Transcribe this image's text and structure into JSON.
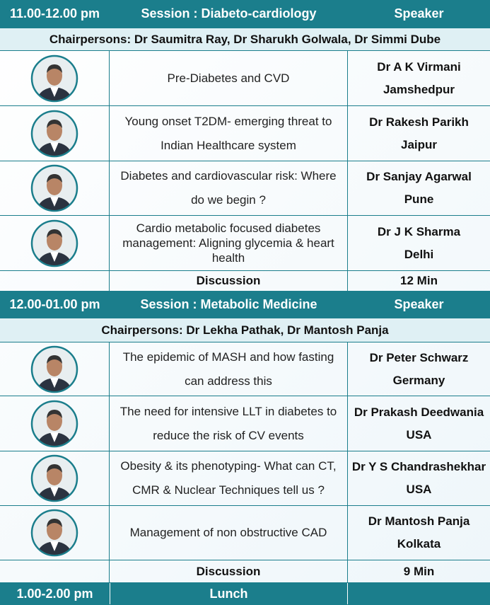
{
  "sessions": [
    {
      "time": "11.00-12.00 pm",
      "title": "Session : Diabeto-cardiology",
      "speaker_label": "Speaker",
      "chairpersons": "Chairpersons: Dr Saumitra Ray, Dr Sharukh Golwala, Dr Simmi Dube",
      "talks": [
        {
          "topic": "Pre-Diabetes and CVD",
          "speaker": "Dr A K Virmani",
          "place": "Jamshedpur"
        },
        {
          "topic": "Young onset T2DM- emerging threat to Indian Healthcare system",
          "speaker": "Dr Rakesh Parikh",
          "place": "Jaipur"
        },
        {
          "topic": "Diabetes and cardiovascular risk: Where do we begin ?",
          "speaker": "Dr Sanjay Agarwal",
          "place": "Pune"
        },
        {
          "topic": "Cardio metabolic focused diabetes management: Aligning glycemia & heart health",
          "speaker": "Dr  J K Sharma",
          "place": "Delhi"
        }
      ],
      "discussion": {
        "label": "Discussion",
        "duration": "12 Min"
      }
    },
    {
      "time": "12.00-01.00 pm",
      "title": "Session : Metabolic Medicine",
      "speaker_label": "Speaker",
      "chairpersons": "Chairpersons: Dr Lekha Pathak, Dr Mantosh Panja",
      "talks": [
        {
          "topic": "The  epidemic of MASH and how fasting can address this",
          "speaker": "Dr Peter Schwarz",
          "place": "Germany"
        },
        {
          "topic": "The need for intensive LLT in diabetes to reduce the risk of CV events",
          "speaker": "Dr Prakash Deedwania",
          "place": "USA"
        },
        {
          "topic": "Obesity & its phenotyping- What can CT, CMR & Nuclear Techniques tell us ?",
          "speaker": "Dr Y S Chandrashekhar",
          "place": "USA"
        },
        {
          "topic": "Management of non obstructive CAD",
          "speaker": "Dr Mantosh Panja",
          "place": "Kolkata"
        }
      ],
      "discussion": {
        "label": "Discussion",
        "duration": "9 Min"
      }
    }
  ],
  "lunch": {
    "time": "1.00-2.00 pm",
    "label": "Lunch"
  }
}
